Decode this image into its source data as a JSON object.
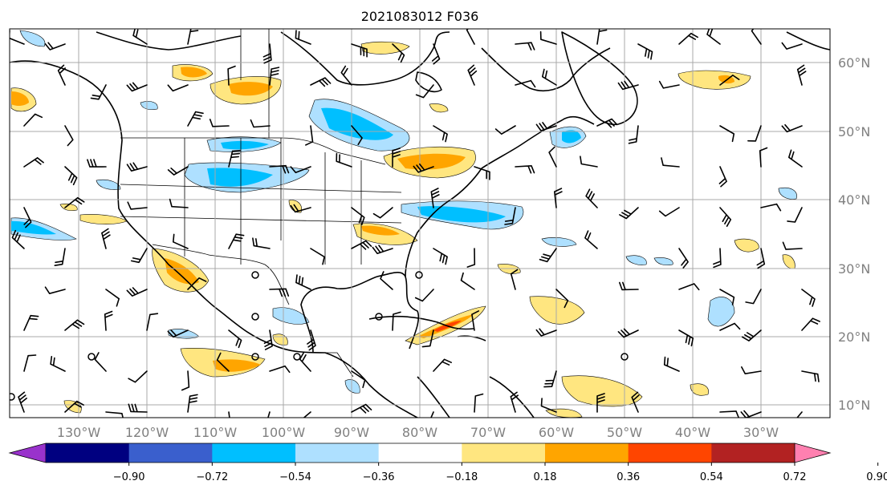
{
  "title": "2021083012 F036",
  "lon_ticks": [
    "130°W",
    "120°W",
    "110°W",
    "100°W",
    "90°W",
    "80°W",
    "70°W",
    "60°W",
    "50°W",
    "40°W",
    "30°W"
  ],
  "lat_ticks": [
    "60°N",
    "50°N",
    "40°N",
    "30°N",
    "20°N",
    "10°N"
  ],
  "colorbar": {
    "tick_labels": [
      "−0.90",
      "−0.72",
      "−0.54",
      "−0.36",
      "−0.18",
      "0.18",
      "0.36",
      "0.54",
      "0.72",
      "0.90"
    ],
    "colors": [
      "#9932cc",
      "#000080",
      "#3a5fcd",
      "#00bfff",
      "#aee0ff",
      "#ffffff",
      "#ffe680",
      "#ffa500",
      "#ff4500",
      "#b22222",
      "#ff80b0"
    ]
  },
  "colors": {
    "grid": "#a9a9a9",
    "tick_label": "#808080",
    "coast": "#000000"
  }
}
